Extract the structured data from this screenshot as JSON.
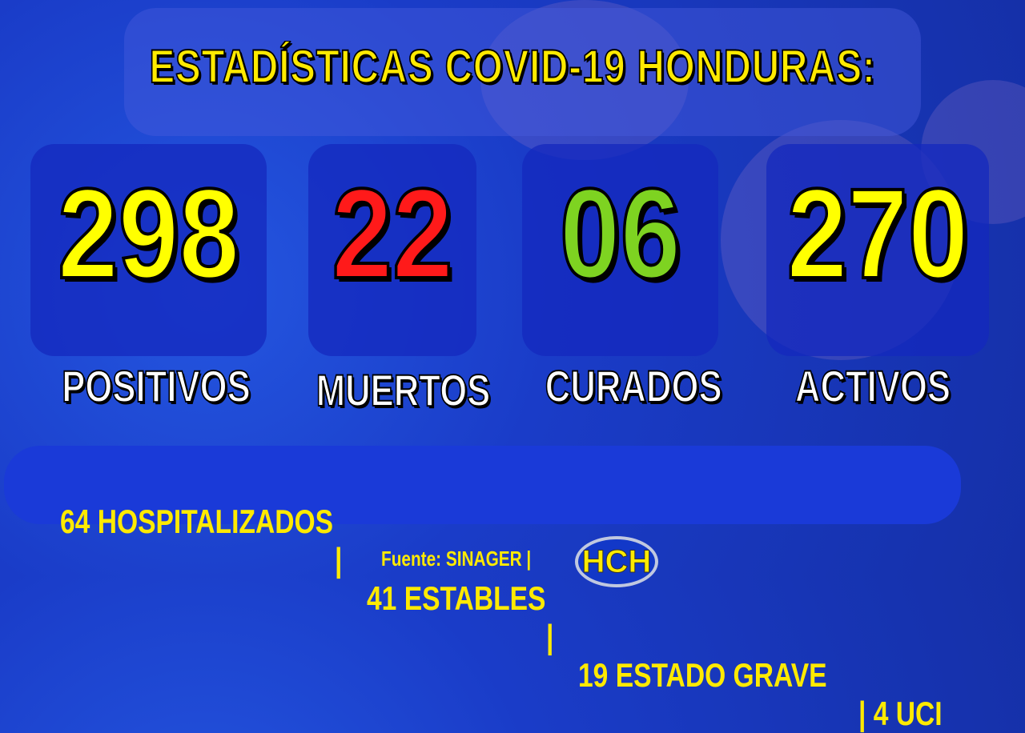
{
  "title": "ESTADÍSTICAS COVID-19  HONDURAS:",
  "stats": [
    {
      "value": "298",
      "label": "POSITIVOS",
      "color": "#ffff00"
    },
    {
      "value": "22",
      "label": "MUERTOS",
      "color": "#ff1a1a"
    },
    {
      "value": "06",
      "label": "CURADOS",
      "color": "#7ed321"
    },
    {
      "value": "270",
      "label": "ACTIVOS",
      "color": "#ffff00"
    }
  ],
  "details": [
    "64 HOSPITALIZADOS",
    "|",
    "41 ESTABLES",
    "|",
    "19 ESTADO GRAVE",
    "| 4 UCI"
  ],
  "source": "Fuente: SINAGER  |",
  "logo": "HCH"
}
